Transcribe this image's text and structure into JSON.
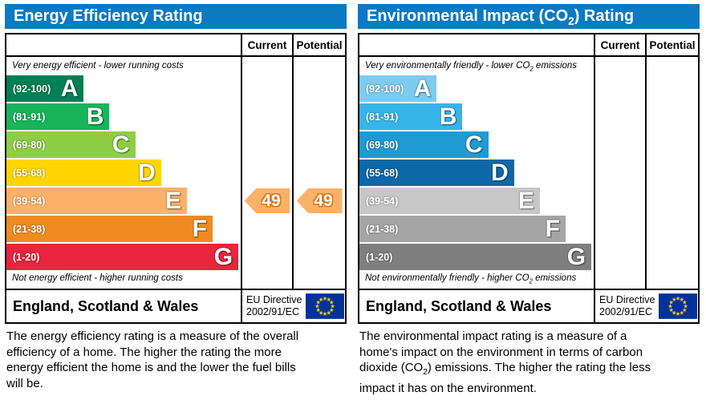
{
  "theme": {
    "header_bg": "#0c79c3",
    "border": "#000000"
  },
  "eu_flag": {
    "background": "#003399",
    "stars": "#ffcc00"
  },
  "chart_data": [
    {
      "type": "bar",
      "panel": "energy-efficiency-rating",
      "title_pre": "Energy Efficiency Rating",
      "title_sub": "",
      "title_post": "",
      "columns": [
        "Current",
        "Potential"
      ],
      "cap_top_pre": "Very energy efficient - lower running costs",
      "cap_top_sub": "",
      "cap_top_post": "",
      "cap_bot_pre": "Not energy efficient - higher running costs",
      "cap_bot_sub": "",
      "cap_bot_post": "",
      "bands": [
        {
          "label": "A",
          "range": "(92-100)",
          "min": 92,
          "max": 100,
          "color": "#008054",
          "width_pct": 33
        },
        {
          "label": "B",
          "range": "(81-91)",
          "min": 81,
          "max": 91,
          "color": "#19b459",
          "width_pct": 44
        },
        {
          "label": "C",
          "range": "(69-80)",
          "min": 69,
          "max": 80,
          "color": "#8dce46",
          "width_pct": 55
        },
        {
          "label": "D",
          "range": "(55-68)",
          "min": 55,
          "max": 68,
          "color": "#ffd500",
          "width_pct": 66
        },
        {
          "label": "E",
          "range": "(39-54)",
          "min": 39,
          "max": 54,
          "color": "#fbb268",
          "width_pct": 77
        },
        {
          "label": "F",
          "range": "(21-38)",
          "min": 21,
          "max": 38,
          "color": "#ef8b21",
          "width_pct": 88
        },
        {
          "label": "G",
          "range": "(1-20)",
          "min": 1,
          "max": 20,
          "color": "#e9243d",
          "width_pct": 99
        }
      ],
      "current": {
        "value": 49,
        "band": "E",
        "color": "#fbb268"
      },
      "potential": {
        "value": 49,
        "band": "E",
        "color": "#fbb268"
      },
      "footer_region": "England, Scotland & Wales",
      "directive_line1": "EU Directive",
      "directive_line2": "2002/91/EC",
      "desc_pre": "The energy efficiency rating is a measure of the overall efficiency of a home. The higher the rating the more energy efficient the home is and the lower the fuel bills will be.",
      "desc_sub": "",
      "desc_post": ""
    },
    {
      "type": "bar",
      "panel": "environmental-impact-co2-rating",
      "title_pre": "Environmental Impact (CO",
      "title_sub": "2",
      "title_post": ") Rating",
      "columns": [
        "Current",
        "Potential"
      ],
      "cap_top_pre": "Very environmentally friendly - lower CO",
      "cap_top_sub": "2",
      "cap_top_post": " emissions",
      "cap_bot_pre": "Not environmentally friendly - higher CO",
      "cap_bot_sub": "2",
      "cap_bot_post": " emissions",
      "bands": [
        {
          "label": "A",
          "range": "(92-100)",
          "min": 92,
          "max": 100,
          "color": "#7ecbf0",
          "width_pct": 33
        },
        {
          "label": "B",
          "range": "(81-91)",
          "min": 81,
          "max": 91,
          "color": "#36b5ea",
          "width_pct": 44
        },
        {
          "label": "C",
          "range": "(69-80)",
          "min": 69,
          "max": 80,
          "color": "#1f9ad3",
          "width_pct": 55
        },
        {
          "label": "D",
          "range": "(55-68)",
          "min": 55,
          "max": 68,
          "color": "#0d68a7",
          "width_pct": 66
        },
        {
          "label": "E",
          "range": "(39-54)",
          "min": 39,
          "max": 54,
          "color": "#c7c7c7",
          "width_pct": 77
        },
        {
          "label": "F",
          "range": "(21-38)",
          "min": 21,
          "max": 38,
          "color": "#a5a5a5",
          "width_pct": 88
        },
        {
          "label": "G",
          "range": "(1-20)",
          "min": 1,
          "max": 20,
          "color": "#7f7f7f",
          "width_pct": 99
        }
      ],
      "current": null,
      "potential": null,
      "footer_region": "England, Scotland & Wales",
      "directive_line1": "EU Directive",
      "directive_line2": "2002/91/EC",
      "desc_pre": "The environmental impact rating is a measure of a home's impact on the environment in terms of carbon dioxide (CO",
      "desc_sub": "2",
      "desc_post": ") emissions. The higher the rating the less impact it has on the environment."
    }
  ]
}
